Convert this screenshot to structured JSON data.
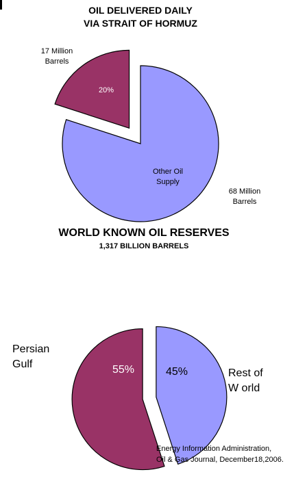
{
  "chart_data": [
    {
      "type": "pie",
      "title": "OIL DELIVERED DAILY\nVIA STRAIT OF HORMUZ",
      "slices": [
        {
          "label": "17 Million Barrels",
          "inner_label": "20%",
          "value": 20,
          "color": "#993366",
          "exploded": true
        },
        {
          "label": "68 Million Barrels",
          "inner_label": "Other Oil Supply",
          "value": 80,
          "color": "#9999ff",
          "exploded": false
        }
      ]
    },
    {
      "type": "pie",
      "title": "WORLD KNOWN OIL RESERVES",
      "subtitle": "1,317 BILLION BARRELS",
      "slices": [
        {
          "label": "Persian Gulf",
          "inner_label": "55%",
          "value": 55,
          "color": "#993366",
          "exploded": true
        },
        {
          "label": "Rest of W orld",
          "inner_label": "45%",
          "value": 45,
          "color": "#9999ff",
          "exploded": true
        }
      ]
    }
  ],
  "text": {
    "title1_line1": "OIL DELIVERED DAILY",
    "title1_line2": "VIA STRAIT OF HORMUZ",
    "p1_label_small_l1": "17 Million",
    "p1_label_small_l2": "Barrels",
    "p1_inner_small": "20%",
    "p1_inner_large_l1": "Other Oil",
    "p1_inner_large_l2": "Supply",
    "p1_label_large_l1": "68 Million",
    "p1_label_large_l2": "Barrels",
    "title2": "WORLD KNOWN OIL RESERVES",
    "subtitle2": "1,317 BILLION BARRELS",
    "p2_label_left_l1": "Persian",
    "p2_label_left_l2": "Gulf",
    "p2_inner_left": "55%",
    "p2_inner_right": "45%",
    "p2_label_right_l1": "Rest of",
    "p2_label_right_l2": "W orld",
    "source_l1": "Energy Information Administration,",
    "source_l2": "Oil & Gas Journal, December18,2006."
  }
}
